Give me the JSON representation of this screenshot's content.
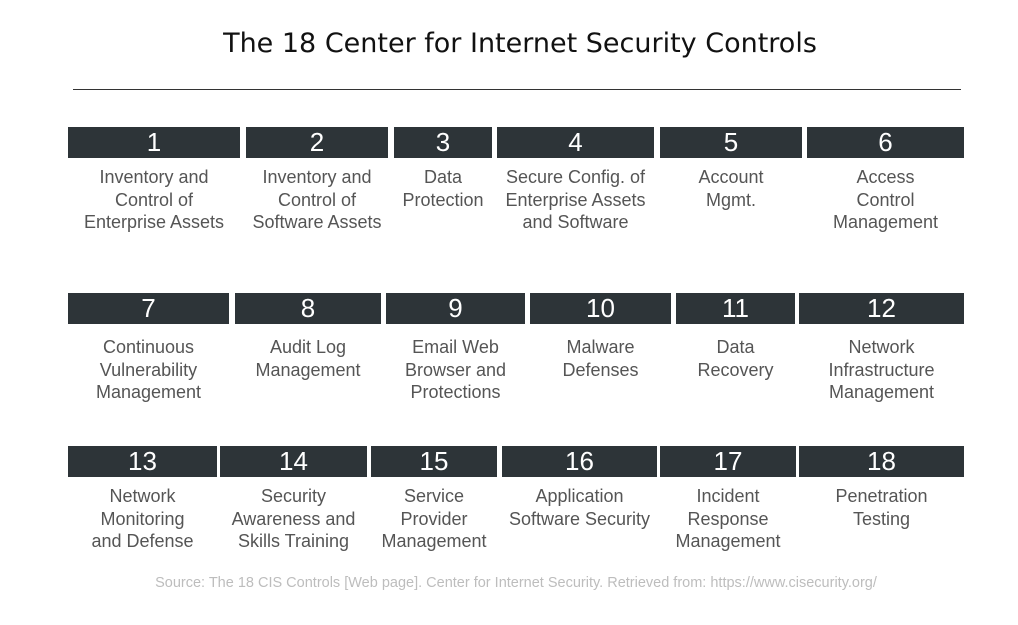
{
  "title": "The 18 Center for Internet Security Controls",
  "source": "Source: The 18 CIS Controls [Web page]. Center for Internet Security. Retrieved from: https://www.cisecurity.org/",
  "controls": [
    {
      "number": "1",
      "label": [
        "Inventory and",
        "Control of",
        "Enterprise Assets"
      ]
    },
    {
      "number": "2",
      "label": [
        "Inventory and",
        "Control of",
        "Software Assets"
      ]
    },
    {
      "number": "3",
      "label": [
        "Data",
        "Protection"
      ]
    },
    {
      "number": "4",
      "label": [
        "Secure Config. of",
        "Enterprise Assets",
        "and Software"
      ]
    },
    {
      "number": "5",
      "label": [
        "Account",
        "Mgmt."
      ]
    },
    {
      "number": "6",
      "label": [
        "Access",
        "Control",
        "Management"
      ]
    },
    {
      "number": "7",
      "label": [
        "Continuous",
        "Vulnerability",
        "Management"
      ]
    },
    {
      "number": "8",
      "label": [
        "Audit Log",
        "Management"
      ]
    },
    {
      "number": "9",
      "label": [
        "Email Web",
        "Browser and",
        "Protections"
      ]
    },
    {
      "number": "10",
      "label": [
        "Malware",
        "Defenses"
      ]
    },
    {
      "number": "11",
      "label": [
        "Data",
        "Recovery"
      ]
    },
    {
      "number": "12",
      "label": [
        "Network",
        "Infrastructure",
        "Management"
      ]
    },
    {
      "number": "13",
      "label": [
        "Network",
        "Monitoring",
        "and Defense"
      ]
    },
    {
      "number": "14",
      "label": [
        "Security",
        "Awareness and",
        "Skills Training"
      ]
    },
    {
      "number": "15",
      "label": [
        "Service",
        "Provider",
        "Management"
      ]
    },
    {
      "number": "16",
      "label": [
        "Application",
        "Software Security"
      ]
    },
    {
      "number": "17",
      "label": [
        "Incident",
        "Response",
        "Management"
      ]
    },
    {
      "number": "18",
      "label": [
        "Penetration",
        "Testing"
      ]
    }
  ]
}
